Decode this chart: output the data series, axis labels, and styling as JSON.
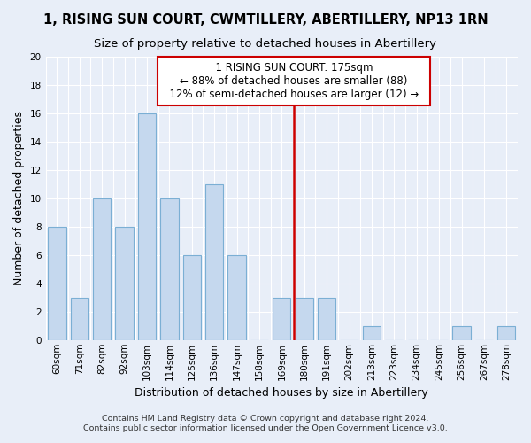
{
  "title": "1, RISING SUN COURT, CWMTILLERY, ABERTILLERY, NP13 1RN",
  "subtitle": "Size of property relative to detached houses in Abertillery",
  "xlabel": "Distribution of detached houses by size in Abertillery",
  "ylabel": "Number of detached properties",
  "categories": [
    "60sqm",
    "71sqm",
    "82sqm",
    "92sqm",
    "103sqm",
    "114sqm",
    "125sqm",
    "136sqm",
    "147sqm",
    "158sqm",
    "169sqm",
    "180sqm",
    "191sqm",
    "202sqm",
    "213sqm",
    "223sqm",
    "234sqm",
    "245sqm",
    "256sqm",
    "267sqm",
    "278sqm"
  ],
  "values": [
    8,
    3,
    10,
    8,
    16,
    10,
    6,
    11,
    6,
    0,
    3,
    3,
    3,
    0,
    1,
    0,
    0,
    0,
    1,
    0,
    1
  ],
  "bar_color": "#c5d8ee",
  "bar_edge_color": "#7bafd4",
  "subject_line_color": "#cc0000",
  "box_edge_color": "#cc0000",
  "box_face_color": "#ffffff",
  "background_color": "#e8eef8",
  "grid_color": "#ffffff",
  "annotation_title": "1 RISING SUN COURT: 175sqm",
  "annotation_line1": "← 88% of detached houses are smaller (88)",
  "annotation_line2": "12% of semi-detached houses are larger (12) →",
  "ylim": [
    0,
    20
  ],
  "yticks": [
    0,
    2,
    4,
    6,
    8,
    10,
    12,
    14,
    16,
    18,
    20
  ],
  "footnote1": "Contains HM Land Registry data © Crown copyright and database right 2024.",
  "footnote2": "Contains public sector information licensed under the Open Government Licence v3.0.",
  "title_fontsize": 10.5,
  "subtitle_fontsize": 9.5,
  "xlabel_fontsize": 9,
  "ylabel_fontsize": 9,
  "tick_fontsize": 7.5,
  "footnote_fontsize": 6.8,
  "annot_fontsize": 8.5
}
